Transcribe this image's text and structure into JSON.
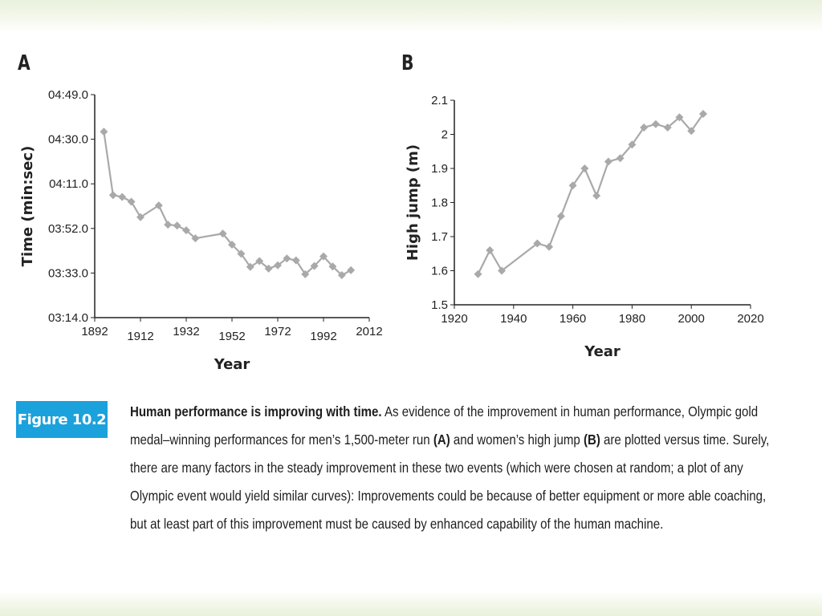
{
  "panels": {
    "a_label": "A",
    "b_label": "B"
  },
  "figure": {
    "badge": "Figure 10.2",
    "caption_bold_lead": "Human performance is improving with time.",
    "caption_part1": " As evidence of the improvement in human performance, Olympic gold medal–winning performances for men’s 1,500-meter run ",
    "caption_ref_a": "(A)",
    "caption_part2": " and women’s high jump ",
    "caption_ref_b": "(B)",
    "caption_part3": " are plotted versus time. Surely, there are many factors in the steady improvement in these two events (which were chosen at random; a plot of any Olympic event would yield similar curves): Improvements could be because of better equipment or more able coaching, but at least part of this improvement must be caused by enhanced capability of the human machine."
  },
  "colors": {
    "series": "#a9a9a9",
    "axis": "#222222",
    "badge": "#1ba1dc"
  },
  "chart_data": [
    {
      "type": "line",
      "xlabel": "Year",
      "ylabel": "Time (min:sec)",
      "xlim": [
        1892,
        2012
      ],
      "x_ticks": [
        "1892",
        "1912",
        "1932",
        "1952",
        "1972",
        "1992",
        "2012"
      ],
      "ylim_seconds": [
        194,
        289
      ],
      "y_ticks": [
        "03:14.0",
        "03:33.0",
        "03:52.0",
        "04:11.0",
        "04:30.0",
        "04:49.0"
      ],
      "x": [
        1896,
        1900,
        1904,
        1908,
        1912,
        1920,
        1924,
        1928,
        1932,
        1936,
        1948,
        1952,
        1956,
        1960,
        1964,
        1968,
        1972,
        1976,
        1980,
        1984,
        1988,
        1992,
        1996,
        2000,
        2004
      ],
      "y_time": [
        "04:33.2",
        "04:06.2",
        "04:05.4",
        "04:03.4",
        "03:56.8",
        "04:01.8",
        "03:53.6",
        "03:53.2",
        "03:51.2",
        "03:47.8",
        "03:49.8",
        "03:45.1",
        "03:41.2",
        "03:35.6",
        "03:38.1",
        "03:34.9",
        "03:36.3",
        "03:39.2",
        "03:38.4",
        "03:32.5",
        "03:36.0",
        "03:40.1",
        "03:35.8",
        "03:32.1",
        "03:34.2"
      ]
    },
    {
      "type": "line",
      "xlabel": "Year",
      "ylabel": "High jump (m)",
      "xlim": [
        1920,
        2020
      ],
      "ylim": [
        1.5,
        2.1
      ],
      "x_ticks": [
        "1920",
        "1940",
        "1960",
        "1980",
        "2000",
        "2020"
      ],
      "y_ticks": [
        "1.5",
        "1.6",
        "1.7",
        "1.8",
        "1.9",
        "2",
        "2.1"
      ],
      "x": [
        1928,
        1932,
        1936,
        1948,
        1952,
        1956,
        1960,
        1964,
        1968,
        1972,
        1976,
        1980,
        1984,
        1988,
        1992,
        1996,
        2000,
        2004
      ],
      "y": [
        1.59,
        1.66,
        1.6,
        1.68,
        1.67,
        1.76,
        1.85,
        1.9,
        1.82,
        1.92,
        1.93,
        1.97,
        2.02,
        2.03,
        2.02,
        2.05,
        2.01,
        2.06
      ]
    }
  ]
}
